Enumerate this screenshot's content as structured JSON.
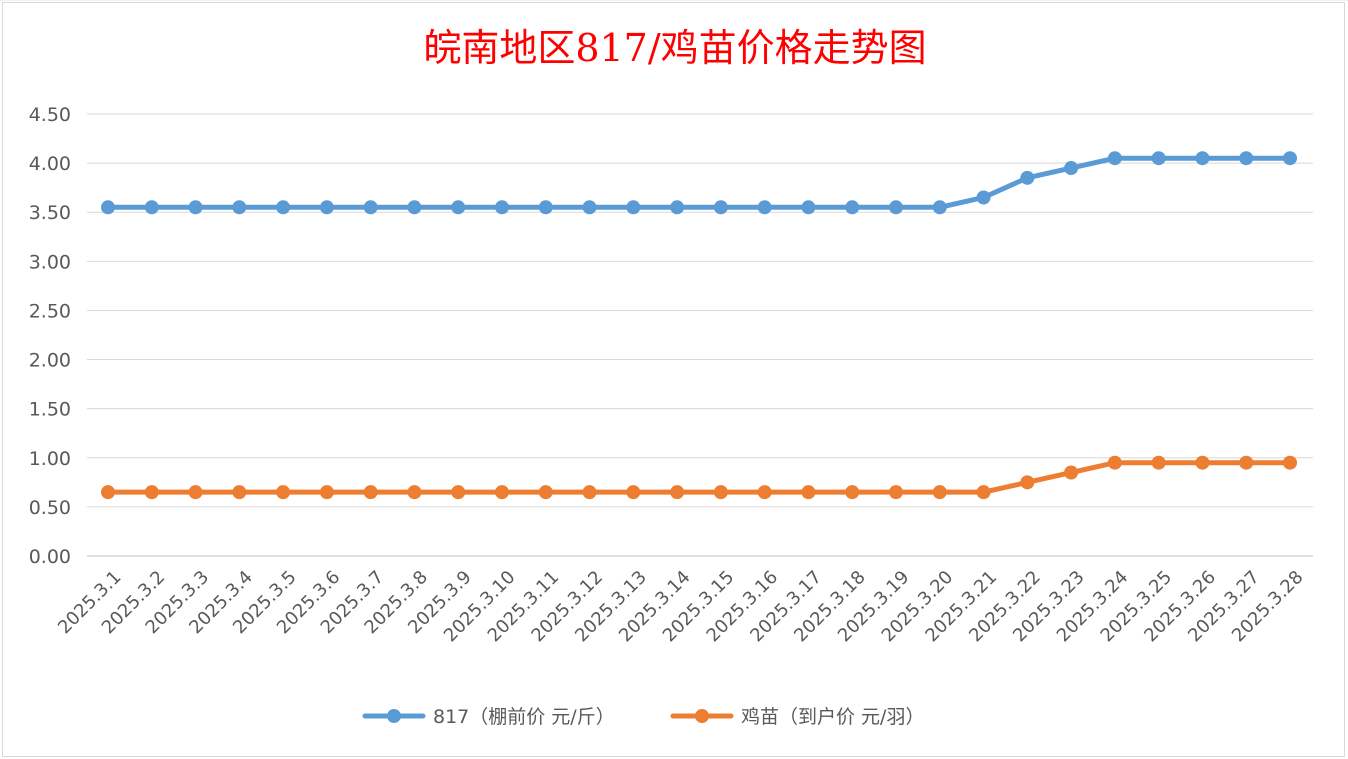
{
  "chart_data": {
    "type": "line",
    "title": "皖南地区817/鸡苗价格走势图",
    "xlabel": "",
    "ylabel": "",
    "ylim": [
      0,
      4.5
    ],
    "y_ticks": [
      "0.00",
      "0.50",
      "1.00",
      "1.50",
      "2.00",
      "2.50",
      "3.00",
      "3.50",
      "4.00",
      "4.50"
    ],
    "grid": true,
    "legend_position": "bottom",
    "categories": [
      "2025.3.1",
      "2025.3.2",
      "2025.3.3",
      "2025.3.4",
      "2025.3.5",
      "2025.3.6",
      "2025.3.7",
      "2025.3.8",
      "2025.3.9",
      "2025.3.10",
      "2025.3.11",
      "2025.3.12",
      "2025.3.13",
      "2025.3.14",
      "2025.3.15",
      "2025.3.16",
      "2025.3.17",
      "2025.3.18",
      "2025.3.19",
      "2025.3.20",
      "2025.3.21",
      "2025.3.22",
      "2025.3.23",
      "2025.3.24",
      "2025.3.25",
      "2025.3.26",
      "2025.3.27",
      "2025.3.28"
    ],
    "series": [
      {
        "name": "817（棚前价 元/斤）",
        "color": "#5b9bd5",
        "values": [
          3.55,
          3.55,
          3.55,
          3.55,
          3.55,
          3.55,
          3.55,
          3.55,
          3.55,
          3.55,
          3.55,
          3.55,
          3.55,
          3.55,
          3.55,
          3.55,
          3.55,
          3.55,
          3.55,
          3.55,
          3.65,
          3.85,
          3.95,
          4.05,
          4.05,
          4.05,
          4.05,
          4.05
        ]
      },
      {
        "name": "鸡苗（到户价 元/羽）",
        "color": "#ed7d31",
        "values": [
          0.65,
          0.65,
          0.65,
          0.65,
          0.65,
          0.65,
          0.65,
          0.65,
          0.65,
          0.65,
          0.65,
          0.65,
          0.65,
          0.65,
          0.65,
          0.65,
          0.65,
          0.65,
          0.65,
          0.65,
          0.65,
          0.75,
          0.85,
          0.95,
          0.95,
          0.95,
          0.95,
          0.95
        ]
      }
    ]
  }
}
